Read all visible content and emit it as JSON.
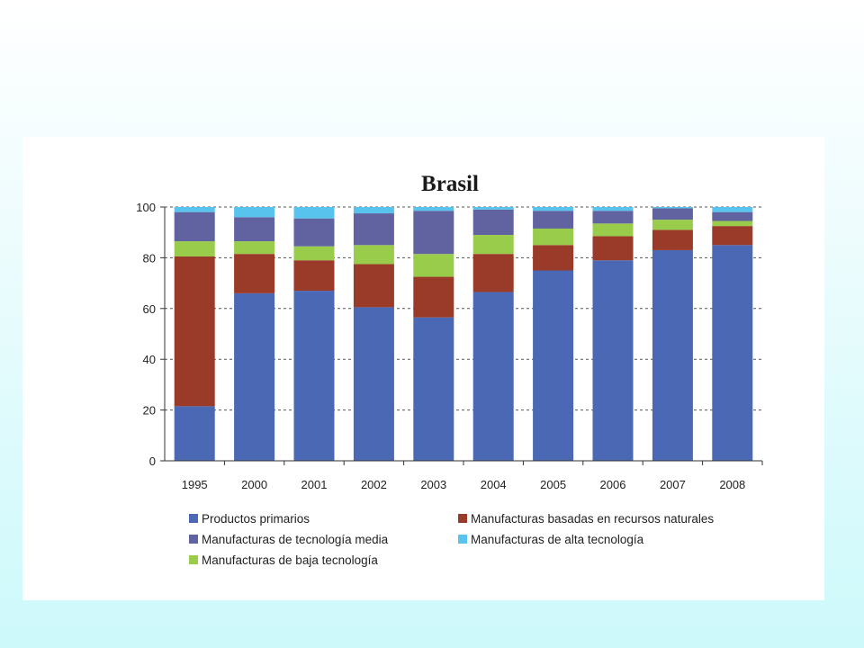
{
  "chart_data": {
    "type": "bar",
    "stacked": true,
    "title": "Brasil",
    "xlabel": "",
    "ylabel": "",
    "ylim": [
      0,
      100
    ],
    "yticks": [
      0,
      20,
      40,
      60,
      80,
      100
    ],
    "grid": "horizontal-dashed",
    "legend_position": "bottom",
    "categories": [
      "1995",
      "2000",
      "2001",
      "2002",
      "2003",
      "2004",
      "2005",
      "2006",
      "2007",
      "2008"
    ],
    "series": [
      {
        "name": "Productos primarios",
        "color": "#4a68b3",
        "values": [
          21.5,
          66,
          67,
          60.5,
          56.5,
          66.5,
          75,
          79,
          83,
          85
        ]
      },
      {
        "name": "Manufacturas basadas en recursos naturales",
        "color": "#9a3a28",
        "values": [
          59,
          15.5,
          12,
          17,
          16,
          15,
          10,
          9.5,
          8,
          7.5
        ]
      },
      {
        "name": "Manufacturas de baja tecnología",
        "color": "#9acc4c",
        "values": [
          6,
          5,
          5.5,
          7.5,
          9,
          7.5,
          6.5,
          5,
          4,
          2
        ]
      },
      {
        "name": "Manufacturas de tecnología media",
        "color": "#6163a0",
        "values": [
          11.5,
          9.5,
          11,
          12.5,
          17,
          10,
          7,
          5,
          4.5,
          3.5
        ]
      },
      {
        "name": "Manufacturas de alta tecnología",
        "color": "#58c3ec",
        "values": [
          2,
          4,
          4.5,
          2.5,
          1.5,
          1,
          1.5,
          1.5,
          0.5,
          2
        ]
      }
    ],
    "legend_order": [
      0,
      1,
      3,
      4,
      2
    ]
  }
}
